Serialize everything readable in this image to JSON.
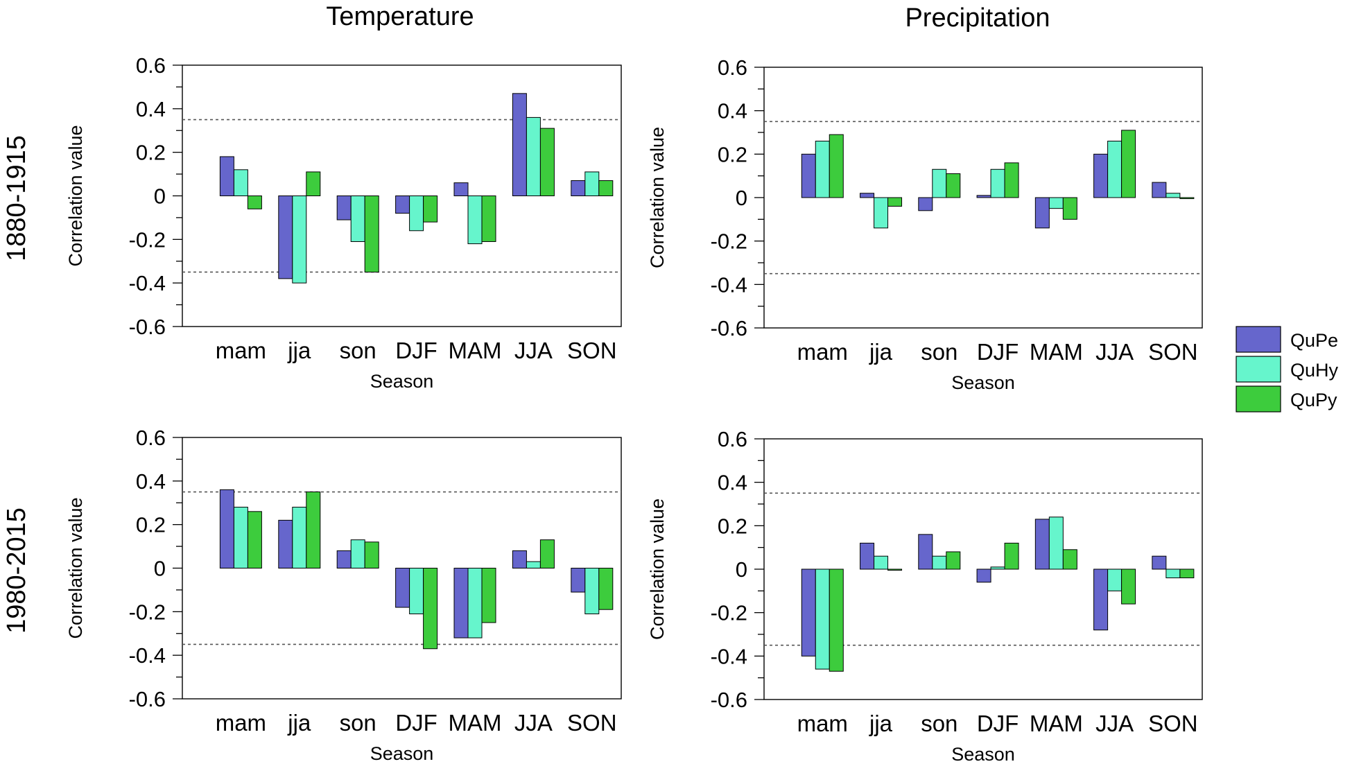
{
  "figure": {
    "column_titles": [
      "Temperature",
      "Precipitation"
    ],
    "row_titles": [
      "1880-1915",
      "1980-2015"
    ]
  },
  "legend": [
    {
      "name": "QuPe",
      "color": "#6666cc"
    },
    {
      "name": "QuHy",
      "color": "#66f5cc"
    },
    {
      "name": "QuPy",
      "color": "#3dcc3d"
    }
  ],
  "chart_data": [
    {
      "type": "bar",
      "panel": "Temperature 1880-1915",
      "categories": [
        "mam",
        "jja",
        "son",
        "DJF",
        "MAM",
        "JJA",
        "SON"
      ],
      "series": [
        {
          "name": "QuPe",
          "values": [
            0.18,
            -0.38,
            -0.11,
            -0.08,
            0.06,
            0.47,
            0.07
          ]
        },
        {
          "name": "QuHy",
          "values": [
            0.12,
            -0.4,
            -0.21,
            -0.16,
            -0.22,
            0.36,
            0.11
          ]
        },
        {
          "name": "QuPy",
          "values": [
            -0.06,
            0.11,
            -0.35,
            -0.12,
            -0.21,
            0.31,
            0.07
          ]
        }
      ],
      "xlabel": "Season",
      "ylabel": "Correlation value",
      "ylim": [
        -0.6,
        0.6
      ],
      "yticks": [
        "0.6",
        "0.4",
        "0.2",
        "0",
        "-0.2",
        "-0.4",
        "-0.6"
      ],
      "significance_lines": [
        0.35,
        -0.35
      ]
    },
    {
      "type": "bar",
      "panel": "Precipitation 1880-1915",
      "categories": [
        "mam",
        "jja",
        "son",
        "DJF",
        "MAM",
        "JJA",
        "SON"
      ],
      "series": [
        {
          "name": "QuPe",
          "values": [
            0.2,
            0.02,
            -0.06,
            0.01,
            -0.14,
            0.2,
            0.07
          ]
        },
        {
          "name": "QuHy",
          "values": [
            0.26,
            -0.14,
            0.13,
            0.13,
            -0.05,
            0.26,
            0.02
          ]
        },
        {
          "name": "QuPy",
          "values": [
            0.29,
            -0.04,
            0.11,
            0.16,
            -0.1,
            0.31,
            -0.005
          ]
        }
      ],
      "xlabel": "Season",
      "ylabel": "Correlation value",
      "ylim": [
        -0.6,
        0.6
      ],
      "yticks": [
        "0.6",
        "0.4",
        "0.2",
        "0",
        "-0.2",
        "-0.4",
        "-0.6"
      ],
      "significance_lines": [
        0.35,
        -0.35
      ]
    },
    {
      "type": "bar",
      "panel": "Temperature 1980-2015",
      "categories": [
        "mam",
        "jja",
        "son",
        "DJF",
        "MAM",
        "JJA",
        "SON"
      ],
      "series": [
        {
          "name": "QuPe",
          "values": [
            0.36,
            0.22,
            0.08,
            -0.18,
            -0.32,
            0.08,
            -0.11
          ]
        },
        {
          "name": "QuHy",
          "values": [
            0.28,
            0.28,
            0.13,
            -0.21,
            -0.32,
            0.03,
            -0.21
          ]
        },
        {
          "name": "QuPy",
          "values": [
            0.26,
            0.35,
            0.12,
            -0.37,
            -0.25,
            0.13,
            -0.19
          ]
        }
      ],
      "xlabel": "Season",
      "ylabel": "Correlation value",
      "ylim": [
        -0.6,
        0.6
      ],
      "yticks": [
        "0.6",
        "0.4",
        "0.2",
        "0",
        "-0.2",
        "-0.4",
        "-0.6"
      ],
      "significance_lines": [
        0.35,
        -0.35
      ]
    },
    {
      "type": "bar",
      "panel": "Precipitation 1980-2015",
      "categories": [
        "mam",
        "jja",
        "son",
        "DJF",
        "MAM",
        "JJA",
        "SON"
      ],
      "series": [
        {
          "name": "QuPe",
          "values": [
            -0.4,
            0.12,
            0.16,
            -0.06,
            0.23,
            -0.28,
            0.06
          ]
        },
        {
          "name": "QuHy",
          "values": [
            -0.46,
            0.06,
            0.06,
            0.01,
            0.24,
            -0.1,
            -0.04
          ]
        },
        {
          "name": "QuPy",
          "values": [
            -0.47,
            -0.005,
            0.08,
            0.12,
            0.09,
            -0.16,
            -0.04
          ]
        }
      ],
      "xlabel": "Season",
      "ylabel": "Correlation value",
      "ylim": [
        -0.6,
        0.6
      ],
      "yticks": [
        "0.6",
        "0.4",
        "0.2",
        "0",
        "-0.2",
        "-0.4",
        "-0.6"
      ],
      "significance_lines": [
        0.35,
        -0.35
      ]
    }
  ]
}
